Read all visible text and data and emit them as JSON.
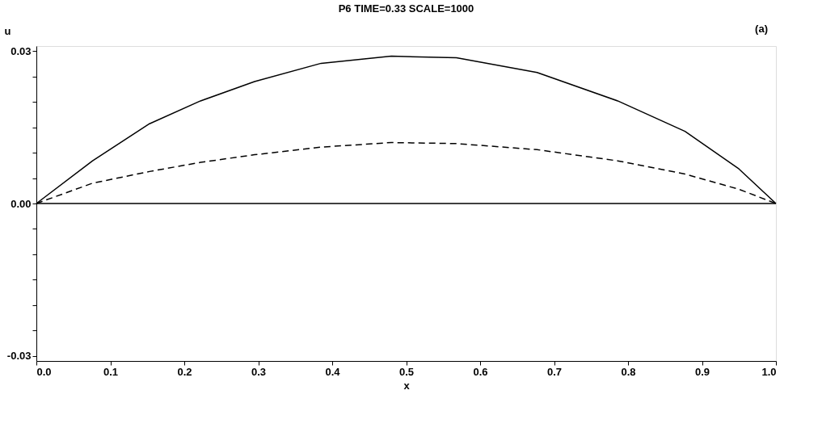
{
  "chart_data": {
    "type": "line",
    "title": "P6   TIME=0.33 SCALE=1000",
    "xlabel": "x",
    "ylabel": "u",
    "annotations": [
      "(a)"
    ],
    "series": [
      {
        "color": "#000000",
        "line_style": "solid",
        "x": [
          0,
          0.076,
          0.153,
          0.222,
          0.295,
          0.385,
          0.48,
          0.568,
          0.677,
          0.786,
          0.877,
          0.95,
          1.0
        ],
        "values": [
          0,
          0.0084,
          0.0157,
          0.0202,
          0.024,
          0.0276,
          0.029,
          0.0287,
          0.0258,
          0.0202,
          0.0142,
          0.0068,
          0
        ]
      },
      {
        "color": "#000000",
        "line_style": "dashed",
        "x": [
          0,
          0.076,
          0.153,
          0.222,
          0.295,
          0.385,
          0.48,
          0.568,
          0.677,
          0.786,
          0.877,
          0.95,
          1.0
        ],
        "values": [
          0,
          0.004,
          0.0063,
          0.0081,
          0.0096,
          0.0111,
          0.012,
          0.0118,
          0.0106,
          0.0084,
          0.0058,
          0.0028,
          0
        ]
      }
    ],
    "ref_lines": [
      {
        "axis": "y",
        "value": 0,
        "label": null,
        "color": "#000000"
      }
    ],
    "xlim": [
      0,
      1.0
    ],
    "xticks": [
      {
        "value": 0,
        "label": "0.0"
      },
      0.1,
      0.2,
      0.3,
      0.4,
      0.5,
      0.6,
      0.7,
      0.8,
      0.9,
      {
        "value": 1,
        "label": "1.0"
      }
    ],
    "ylim": [
      -0.031,
      0.031
    ],
    "yticks": [
      {
        "value": -0.03,
        "label": "-0.03"
      },
      {
        "value": -0.025,
        "label": null
      },
      {
        "value": -0.02,
        "label": null
      },
      {
        "value": -0.015,
        "label": null
      },
      {
        "value": -0.01,
        "label": null
      },
      {
        "value": -0.005,
        "label": null
      },
      {
        "value": 0,
        "label": "0.00"
      },
      {
        "value": 0.005,
        "label": null
      },
      {
        "value": 0.01,
        "label": null
      },
      {
        "value": 0.015,
        "label": null
      },
      {
        "value": 0.02,
        "label": null
      },
      {
        "value": 0.025,
        "label": null
      },
      {
        "value": 0.03,
        "label": "0.03"
      }
    ],
    "grid": false,
    "marker": "none"
  }
}
